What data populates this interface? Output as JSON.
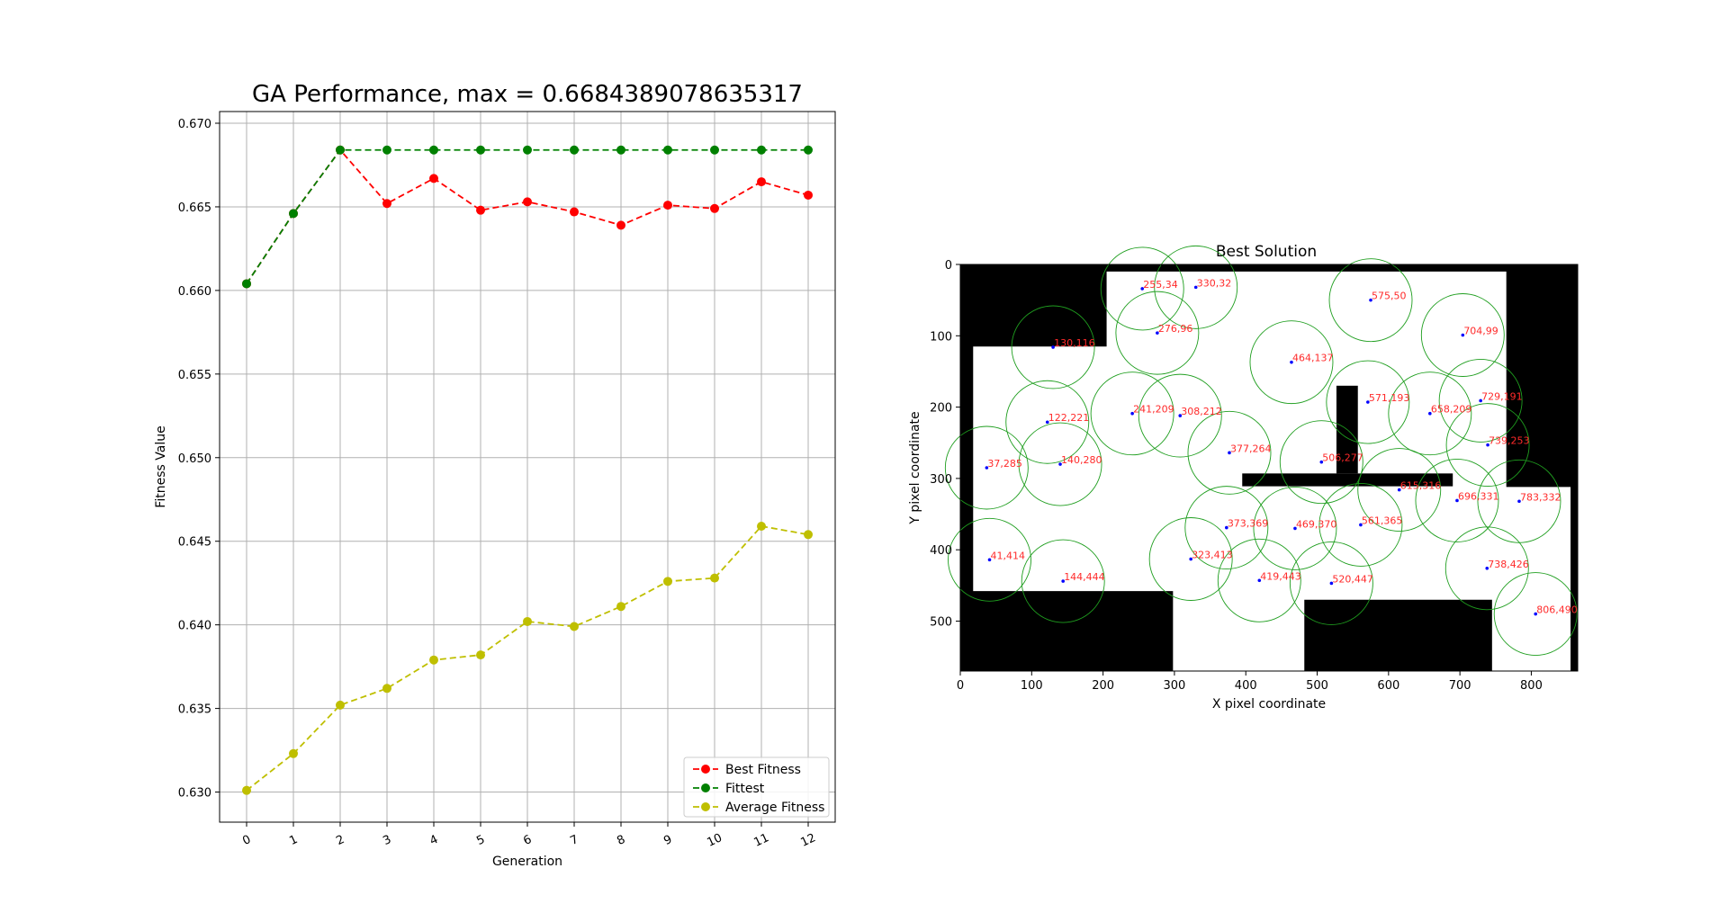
{
  "chart_data": [
    {
      "type": "line",
      "title": "GA Performance, max = 0.6684389078635317",
      "xlabel": "Generation",
      "ylabel": "Fitness Value",
      "categories": [
        0,
        1,
        2,
        3,
        4,
        5,
        6,
        7,
        8,
        9,
        10,
        11,
        12
      ],
      "xticks": [
        "0",
        "1",
        "2",
        "3",
        "4",
        "5",
        "6",
        "7",
        "8",
        "9",
        "10",
        "11",
        "12"
      ],
      "ylim": [
        0.6282,
        0.6707
      ],
      "yticks": [
        "0.630",
        "0.635",
        "0.640",
        "0.645",
        "0.650",
        "0.655",
        "0.660",
        "0.665",
        "0.670"
      ],
      "grid": true,
      "legend_position": "lower-right",
      "series": [
        {
          "name": "Best Fitness",
          "color": "#ff0000",
          "values": [
            0.6604,
            0.6646,
            0.6684,
            0.6652,
            0.6667,
            0.6648,
            0.6653,
            0.6647,
            0.6639,
            0.6651,
            0.6649,
            0.6665,
            0.6657
          ]
        },
        {
          "name": "Fittest",
          "color": "#008000",
          "values": [
            0.6604,
            0.6646,
            0.6684,
            0.6684,
            0.6684,
            0.6684,
            0.6684,
            0.6684,
            0.6684,
            0.6684,
            0.6684,
            0.6684,
            0.6684
          ]
        },
        {
          "name": "Average Fitness",
          "color": "#bfbf00",
          "values": [
            0.6301,
            0.6323,
            0.6352,
            0.6362,
            0.6379,
            0.6382,
            0.6402,
            0.6399,
            0.6411,
            0.6426,
            0.6428,
            0.6459,
            0.6454
          ]
        }
      ]
    },
    {
      "type": "scatter",
      "title": "Best Solution",
      "xlabel": "X pixel coordinate",
      "ylabel": "Y pixel coordinate",
      "xlim": [
        0,
        865
      ],
      "ylim": [
        570,
        0
      ],
      "xticks": [
        "0",
        "100",
        "200",
        "300",
        "400",
        "500",
        "600",
        "700",
        "800"
      ],
      "yticks": [
        "0",
        "100",
        "200",
        "300",
        "400",
        "500"
      ],
      "coverage_radius": 58,
      "points": [
        {
          "x": 255,
          "y": 34,
          "label": "255,34"
        },
        {
          "x": 330,
          "y": 32,
          "label": "330,32"
        },
        {
          "x": 575,
          "y": 50,
          "label": "575,50"
        },
        {
          "x": 276,
          "y": 96,
          "label": "276,96"
        },
        {
          "x": 704,
          "y": 99,
          "label": "704,99"
        },
        {
          "x": 130,
          "y": 116,
          "label": "130,116"
        },
        {
          "x": 464,
          "y": 137,
          "label": "464,137"
        },
        {
          "x": 571,
          "y": 193,
          "label": "571,193"
        },
        {
          "x": 729,
          "y": 191,
          "label": "729,191"
        },
        {
          "x": 241,
          "y": 209,
          "label": "241,209"
        },
        {
          "x": 308,
          "y": 212,
          "label": "308,212"
        },
        {
          "x": 658,
          "y": 209,
          "label": "658,209"
        },
        {
          "x": 122,
          "y": 221,
          "label": "122,221"
        },
        {
          "x": 739,
          "y": 253,
          "label": "739,253"
        },
        {
          "x": 377,
          "y": 264,
          "label": "377,264"
        },
        {
          "x": 506,
          "y": 277,
          "label": "506,277"
        },
        {
          "x": 37,
          "y": 285,
          "label": "37,285"
        },
        {
          "x": 140,
          "y": 280,
          "label": "140,280"
        },
        {
          "x": 615,
          "y": 316,
          "label": "615,316"
        },
        {
          "x": 696,
          "y": 331,
          "label": "696,331"
        },
        {
          "x": 783,
          "y": 332,
          "label": "783,332"
        },
        {
          "x": 373,
          "y": 369,
          "label": "373,369"
        },
        {
          "x": 469,
          "y": 370,
          "label": "469,370"
        },
        {
          "x": 561,
          "y": 365,
          "label": "561,365"
        },
        {
          "x": 41,
          "y": 414,
          "label": "41,414"
        },
        {
          "x": 323,
          "y": 413,
          "label": "323,413"
        },
        {
          "x": 738,
          "y": 426,
          "label": "738,426"
        },
        {
          "x": 144,
          "y": 444,
          "label": "144,444"
        },
        {
          "x": 419,
          "y": 443,
          "label": "419,443"
        },
        {
          "x": 520,
          "y": 447,
          "label": "520,447"
        },
        {
          "x": 806,
          "y": 490,
          "label": "806,490"
        }
      ]
    }
  ]
}
